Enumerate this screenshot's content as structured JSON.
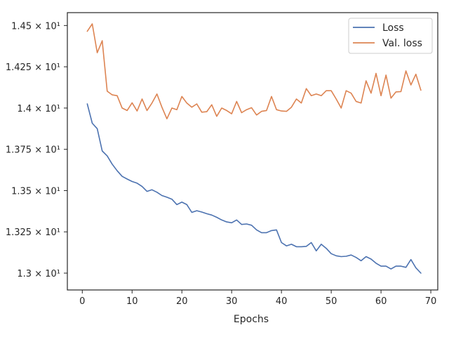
{
  "chart_data": {
    "type": "line",
    "xlabel": "Epochs",
    "ylabel": "",
    "xlim": [
      -3,
      71.4
    ],
    "ylim": [
      12.898,
      14.578
    ],
    "xticks": [
      0,
      10,
      20,
      30,
      40,
      50,
      60,
      70
    ],
    "xtick_labels": [
      "0",
      "10",
      "20",
      "30",
      "40",
      "50",
      "60",
      "70"
    ],
    "yticks": [
      13.0,
      13.25,
      13.5,
      13.75,
      14.0,
      14.25,
      14.5
    ],
    "ytick_labels": [
      "1.3 × 10¹",
      "1.325 × 10¹",
      "1.35 × 10¹",
      "1.375 × 10¹",
      "1.4 × 10¹",
      "1.425 × 10¹",
      "1.45 × 10¹"
    ],
    "grid": false,
    "legend_position": "top-right",
    "x": [
      1,
      2,
      3,
      4,
      5,
      6,
      7,
      8,
      9,
      10,
      11,
      12,
      13,
      14,
      15,
      16,
      17,
      18,
      19,
      20,
      21,
      22,
      23,
      24,
      25,
      26,
      27,
      28,
      29,
      30,
      31,
      32,
      33,
      34,
      35,
      36,
      37,
      38,
      39,
      40,
      41,
      42,
      43,
      44,
      45,
      46,
      47,
      48,
      49,
      50,
      51,
      52,
      53,
      54,
      55,
      56,
      57,
      58,
      59,
      60,
      61,
      62,
      63,
      64,
      65,
      66,
      67,
      68
    ],
    "series": [
      {
        "name": "Loss",
        "color": "#4c72b0",
        "values": [
          14.025,
          13.908,
          13.875,
          13.74,
          13.71,
          13.66,
          13.62,
          13.586,
          13.57,
          13.555,
          13.545,
          13.525,
          13.495,
          13.505,
          13.49,
          13.47,
          13.46,
          13.448,
          13.415,
          13.43,
          13.415,
          13.368,
          13.378,
          13.37,
          13.36,
          13.352,
          13.338,
          13.322,
          13.31,
          13.305,
          13.322,
          13.295,
          13.298,
          13.29,
          13.262,
          13.245,
          13.245,
          13.258,
          13.262,
          13.185,
          13.165,
          13.175,
          13.16,
          13.16,
          13.162,
          13.185,
          13.135,
          13.175,
          13.15,
          13.118,
          13.105,
          13.1,
          13.102,
          13.11,
          13.095,
          13.075,
          13.1,
          13.085,
          13.06,
          13.042,
          13.042,
          13.025,
          13.042,
          13.042,
          13.035,
          13.082,
          13.032,
          13.0
        ]
      },
      {
        "name": "Val. loss",
        "color": "#dd8452",
        "values": [
          14.465,
          14.51,
          14.335,
          14.408,
          14.102,
          14.08,
          14.075,
          14.0,
          13.985,
          14.032,
          13.982,
          14.055,
          13.985,
          14.03,
          14.085,
          14.005,
          13.935,
          14.0,
          13.99,
          14.07,
          14.03,
          14.005,
          14.025,
          13.975,
          13.978,
          14.02,
          13.95,
          14.0,
          13.985,
          13.965,
          14.04,
          13.972,
          13.99,
          14.002,
          13.958,
          13.98,
          13.985,
          14.07,
          13.99,
          13.982,
          13.98,
          14.005,
          14.055,
          14.03,
          14.118,
          14.075,
          14.085,
          14.075,
          14.105,
          14.105,
          14.055,
          14.0,
          14.105,
          14.09,
          14.04,
          14.03,
          14.165,
          14.09,
          14.21,
          14.075,
          14.2,
          14.06,
          14.098,
          14.1,
          14.225,
          14.14,
          14.205,
          14.108
        ]
      }
    ]
  }
}
